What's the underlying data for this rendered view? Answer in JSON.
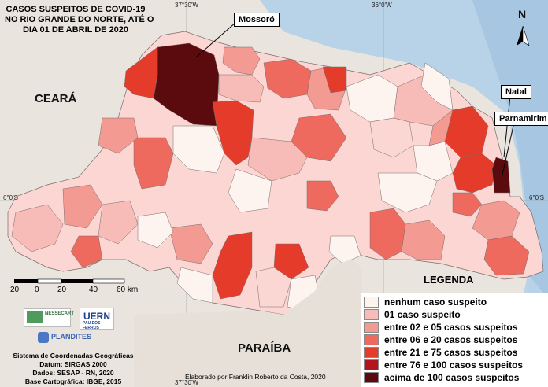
{
  "title_lines": [
    "CASOS SUSPEITOS DE COVID-19",
    "NO RIO GRANDE DO NORTE, ATÉ O",
    "DIA 01 DE ABRIL DE 2020"
  ],
  "neighbors": {
    "ceara": "CEARÁ",
    "paraiba": "PARAÍBA"
  },
  "cities": {
    "mossoro": "Mossoró",
    "natal": "Natal",
    "parnamirim": "Parnamirim"
  },
  "north_arrow": "N",
  "coords": {
    "lon_left": "37°30'W",
    "lon_right": "36°0'W",
    "lat": "6°0'S"
  },
  "legend": {
    "title": "LEGENDA",
    "items": [
      {
        "label": "nenhum caso suspeito",
        "color": "#fdf3ef"
      },
      {
        "label": "01 caso suspeito",
        "color": "#f7bcb8"
      },
      {
        "label": "entre 02 e 05 casos suspeitos",
        "color": "#f39a93"
      },
      {
        "label": "entre 06 e 20 casos suspeitos",
        "color": "#ee6a5f"
      },
      {
        "label": "entre 21 e 75 casos suspeitos",
        "color": "#e53b2b"
      },
      {
        "label": "entre 76 e 100 casos suspeitos",
        "color": "#b2161c"
      },
      {
        "label": "acima de 100 casos suspeitos",
        "color": "#5b0a0e"
      }
    ]
  },
  "scale": {
    "ticks": [
      "20",
      "0",
      "20",
      "40",
      "60 km"
    ]
  },
  "logos": {
    "nessecart": "NESSECART",
    "uern": "UERN",
    "uern_sub": "PAU DOS FERROS",
    "plandites": "PLANDITES"
  },
  "info_lines": [
    "Sistema de Coordenadas Geográficas",
    "Datum: SIRGAS 2000",
    "Dados: SESAP - RN, 2020",
    "Base Cartográfica: IBGE, 2015"
  ],
  "credit": "Elaborado por Franklin Roberto da Costa, 2020"
}
